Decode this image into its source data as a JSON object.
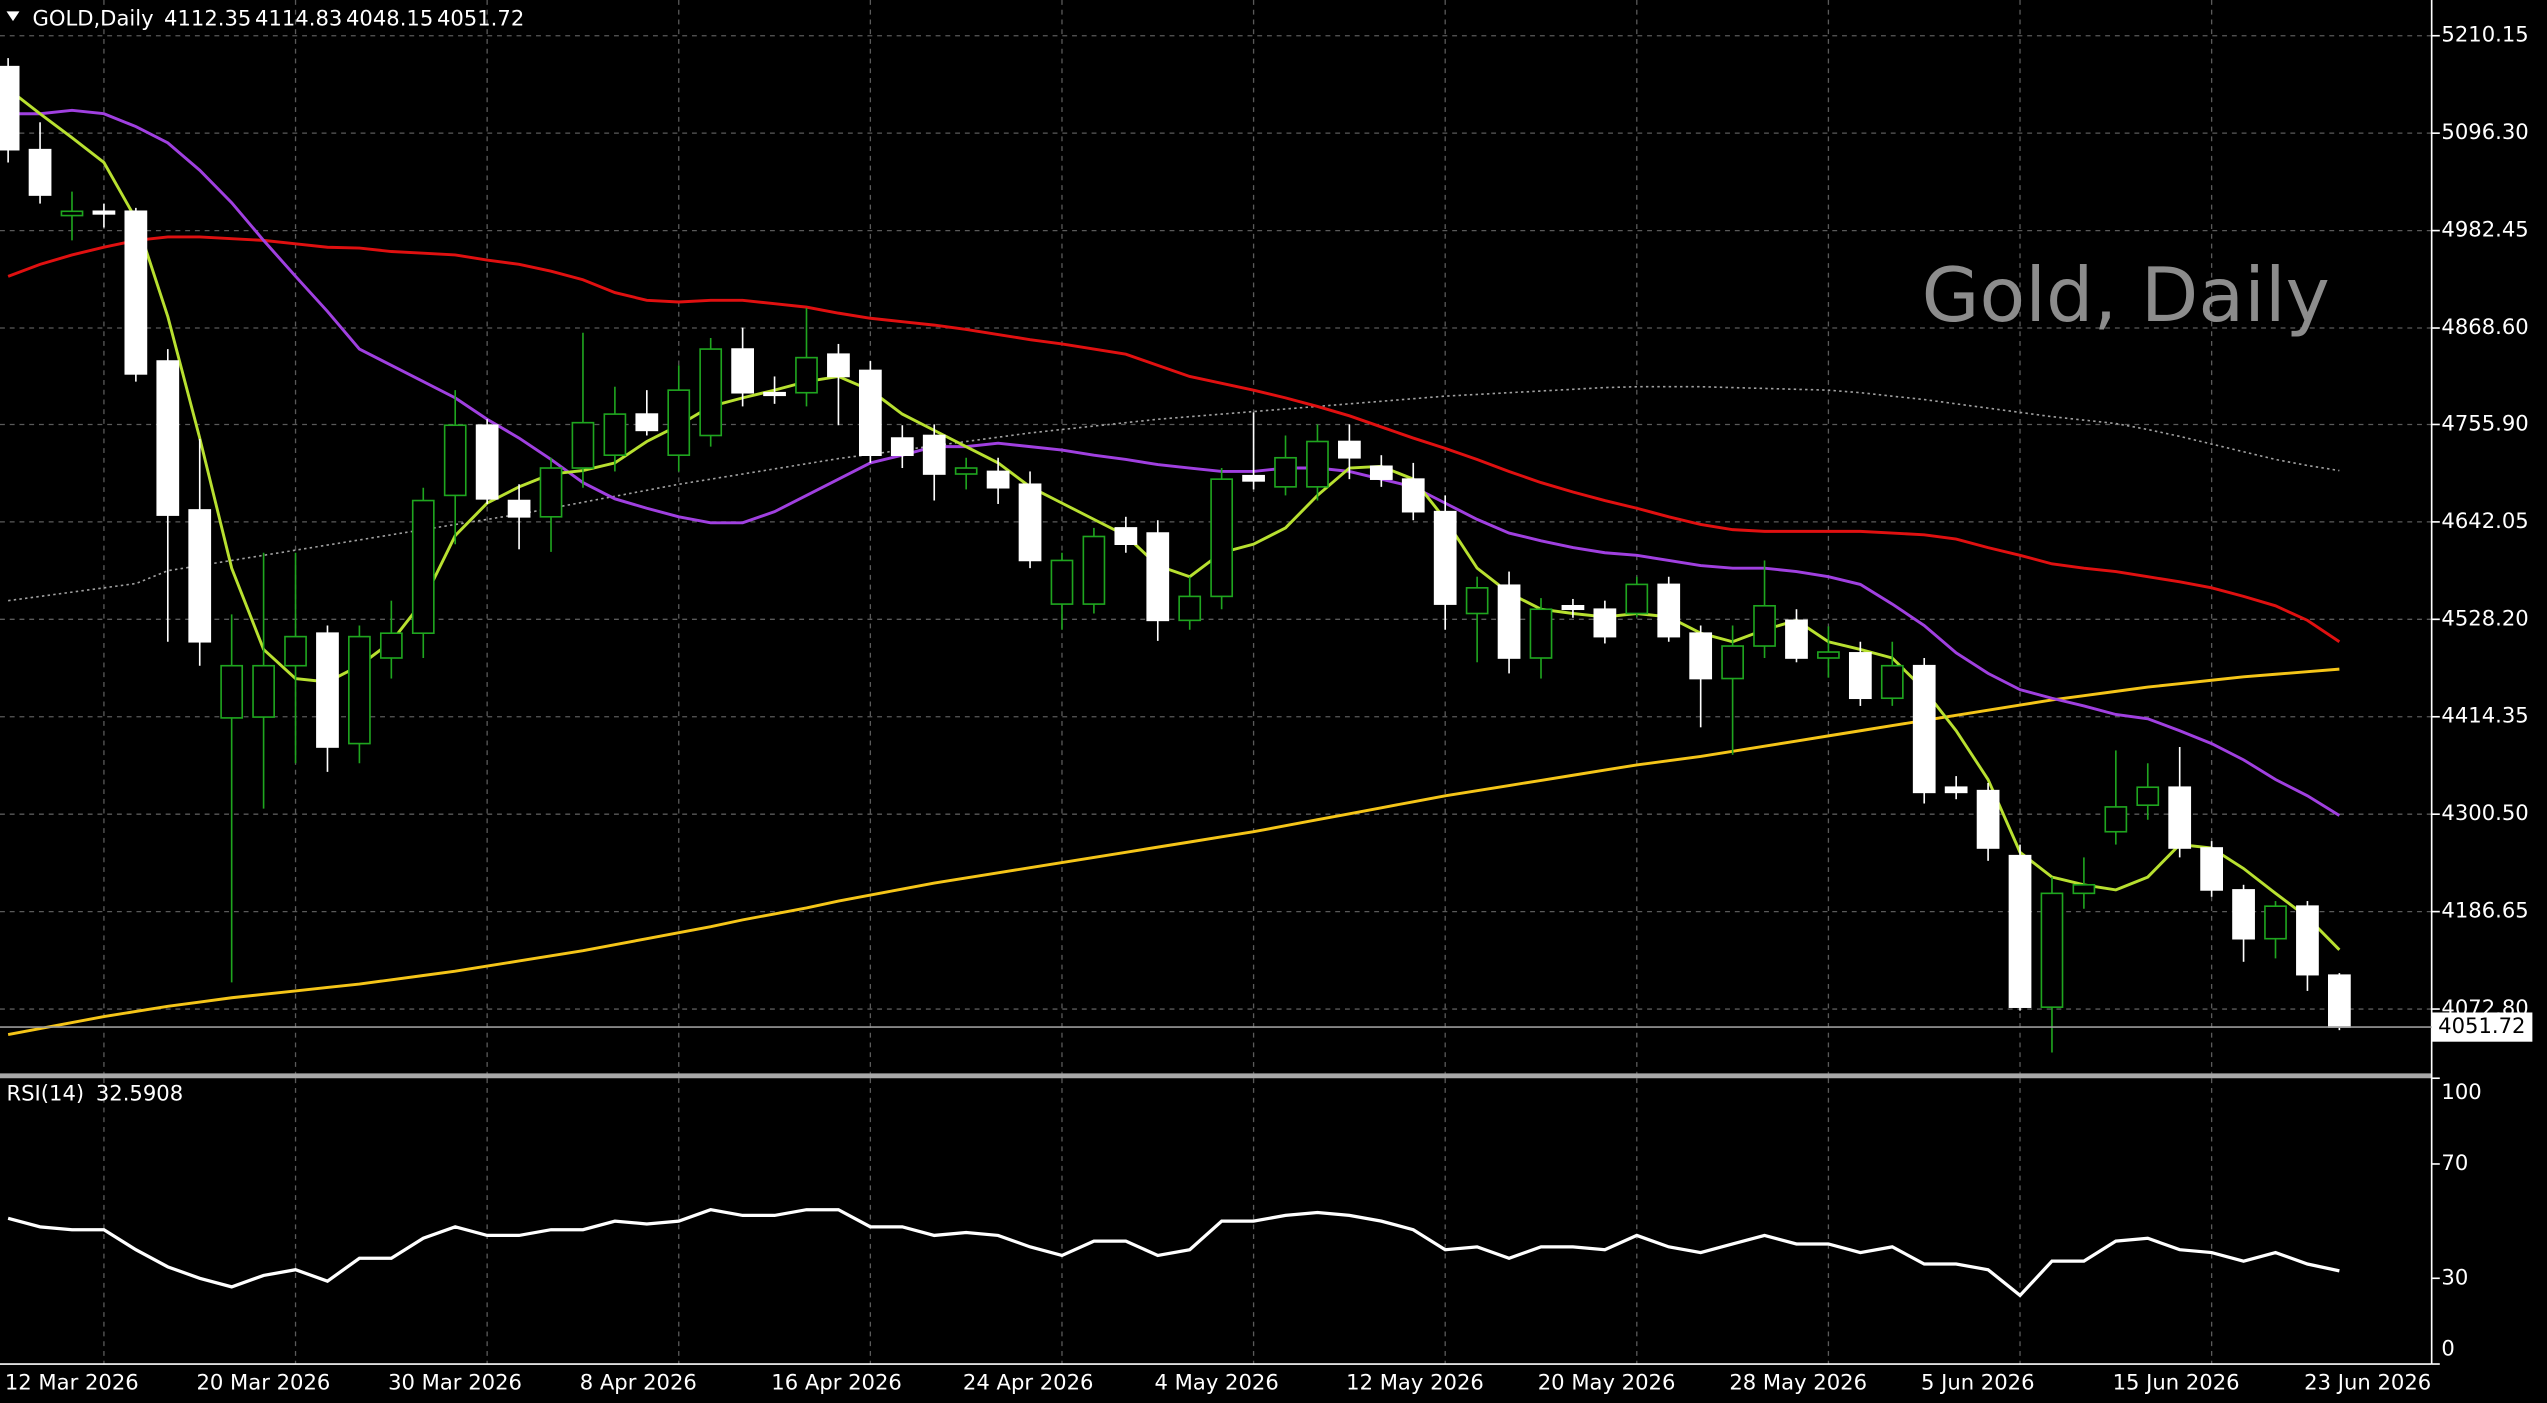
{
  "chart_data": [
    {
      "type": "candlestick",
      "title": "GOLD,Daily",
      "watermark": "Gold, Daily",
      "categories": [
        "12 Mar 2026",
        null,
        null,
        null,
        null,
        null,
        "20 Mar 2026",
        null,
        null,
        null,
        null,
        null,
        "30 Mar 2026",
        null,
        null,
        null,
        null,
        null,
        "8 Apr 2026",
        null,
        null,
        null,
        null,
        null,
        "16 Apr 2026",
        null,
        null,
        null,
        null,
        null,
        "24 Apr 2026",
        null,
        null,
        null,
        null,
        null,
        "4 May 2026",
        null,
        null,
        null,
        null,
        null,
        "12 May 2026",
        null,
        null,
        null,
        null,
        null,
        "20 May 2026",
        null,
        null,
        null,
        null,
        null,
        "28 May 2026",
        null,
        null,
        null,
        null,
        null,
        "5 Jun 2026",
        null,
        null,
        null,
        null,
        null,
        "15 Jun 2026",
        null,
        null,
        null,
        null,
        null,
        "23 Jun 2026",
        null
      ],
      "open": [
        5174,
        5077,
        5000,
        5005,
        5005,
        4830,
        4656,
        4413,
        4414,
        4474,
        4512,
        4383,
        4483,
        4512,
        4673,
        4755,
        4667,
        4648,
        4705,
        4720,
        4768,
        4720,
        4743,
        4844,
        4793,
        4793,
        4838,
        4819,
        4740,
        4743,
        4698,
        4701,
        4686,
        4546,
        4546,
        4635,
        4629,
        4527,
        4555,
        4696,
        4683,
        4683,
        4736,
        4707,
        4692,
        4654,
        4535,
        4568,
        4483,
        4544,
        4540,
        4535,
        4569,
        4512,
        4459,
        4497,
        4527,
        4483,
        4489,
        4436,
        4474,
        4332,
        4328,
        4252,
        4075,
        4208,
        4280,
        4311,
        4332,
        4261,
        4212,
        4155,
        4193,
        4112.35
      ],
      "high": [
        5184,
        5109,
        5028,
        5014,
        5009,
        4844,
        4739,
        4534,
        4606,
        4606,
        4521,
        4521,
        4550,
        4682,
        4796,
        4762,
        4686,
        4717,
        4863,
        4800,
        4796,
        4825,
        4857,
        4869,
        4812,
        4892,
        4850,
        4830,
        4755,
        4756,
        4717,
        4717,
        4701,
        4606,
        4635,
        4648,
        4644,
        4578,
        4705,
        4770,
        4743,
        4756,
        4756,
        4720,
        4711,
        4673,
        4578,
        4584,
        4553,
        4552,
        4550,
        4578,
        4578,
        4521,
        4521,
        4597,
        4540,
        4520,
        4502,
        4502,
        4483,
        4345,
        4337,
        4265,
        4227,
        4250,
        4375,
        4360,
        4379,
        4269,
        4218,
        4199,
        4199,
        4114.83
      ],
      "low": [
        5062,
        5014,
        4971,
        4986,
        4806,
        4502,
        4474,
        4104,
        4307,
        4360,
        4350,
        4360,
        4459,
        4483,
        4616,
        4663,
        4610,
        4607,
        4682,
        4701,
        4743,
        4701,
        4730,
        4777,
        4780,
        4777,
        4755,
        4711,
        4705,
        4667,
        4680,
        4663,
        4588,
        4516,
        4535,
        4606,
        4503,
        4516,
        4540,
        4680,
        4673,
        4667,
        4692,
        4683,
        4644,
        4516,
        4478,
        4465,
        4459,
        4530,
        4500,
        4531,
        4502,
        4402,
        4370,
        4483,
        4478,
        4460,
        4427,
        4427,
        4313,
        4318,
        4246,
        4071,
        4022,
        4190,
        4265,
        4294,
        4250,
        4204,
        4128,
        4132,
        4094,
        4048.15
      ],
      "close": [
        5077,
        5024,
        5005,
        5002,
        4815,
        4650,
        4502,
        4474,
        4474,
        4508,
        4379,
        4508,
        4512,
        4667,
        4755,
        4669,
        4648,
        4705,
        4758,
        4768,
        4749,
        4796,
        4844,
        4793,
        4790,
        4834,
        4812,
        4720,
        4720,
        4698,
        4705,
        4682,
        4597,
        4597,
        4625,
        4616,
        4527,
        4555,
        4692,
        4690,
        4717,
        4736,
        4717,
        4692,
        4654,
        4546,
        4565,
        4483,
        4540,
        4540,
        4508,
        4569,
        4508,
        4459,
        4497,
        4544,
        4483,
        4490,
        4436,
        4474,
        4326,
        4326,
        4261,
        4075,
        4208,
        4218,
        4309,
        4332,
        4261,
        4212,
        4155,
        4193,
        4113,
        4051.72
      ],
      "up_color": "#1fa51f",
      "down_color": "#ffffff",
      "overlays": [
        {
          "color": "#a0a0a0",
          "line_style": "dotted",
          "values": [
            4550,
            4555,
            4560,
            4565,
            4570,
            4585,
            4591,
            4597,
            4603,
            4609,
            4615,
            4621,
            4627,
            4633,
            4639,
            4645,
            4651,
            4658,
            4665,
            4672,
            4679,
            4686,
            4692,
            4698,
            4704,
            4710,
            4716,
            4721,
            4726,
            4731,
            4736,
            4741,
            4746,
            4750,
            4754,
            4758,
            4762,
            4765,
            4768,
            4771,
            4774,
            4777,
            4780,
            4783,
            4786,
            4789,
            4791,
            4793,
            4795,
            4797,
            4799,
            4800,
            4800,
            4800,
            4799,
            4798,
            4797,
            4796,
            4793,
            4789,
            4785,
            4780,
            4775,
            4770,
            4765,
            4761,
            4757,
            4750,
            4742,
            4733,
            4724,
            4715,
            4708,
            4702
          ]
        },
        {
          "color": "#f5c518",
          "line_style": "solid",
          "values": [
            4043,
            4050,
            4057,
            4064,
            4070,
            4076,
            4081,
            4086,
            4090,
            4094,
            4098,
            4102,
            4107,
            4112,
            4117,
            4123,
            4129,
            4135,
            4141,
            4148,
            4155,
            4162,
            4169,
            4177,
            4184,
            4191,
            4199,
            4206,
            4213,
            4220,
            4226,
            4232,
            4238,
            4244,
            4250,
            4256,
            4262,
            4268,
            4274,
            4280,
            4287,
            4294,
            4301,
            4308,
            4315,
            4322,
            4328,
            4334,
            4340,
            4346,
            4352,
            4358,
            4363,
            4368,
            4374,
            4380,
            4386,
            4392,
            4398,
            4404,
            4410,
            4416,
            4422,
            4428,
            4434,
            4439,
            4444,
            4449,
            4453,
            4457,
            4461,
            4464,
            4467,
            4470
          ]
        },
        {
          "color": "#e01010",
          "line_style": "solid",
          "values": [
            4929,
            4943,
            4954,
            4963,
            4971,
            4975,
            4975,
            4973,
            4971,
            4967,
            4963,
            4962,
            4958,
            4956,
            4954,
            4948,
            4943,
            4935,
            4925,
            4910,
            4901,
            4899,
            4901,
            4901,
            4897,
            4893,
            4886,
            4880,
            4876,
            4872,
            4867,
            4861,
            4855,
            4850,
            4844,
            4838,
            4825,
            4812,
            4804,
            4796,
            4787,
            4777,
            4766,
            4753,
            4740,
            4728,
            4715,
            4701,
            4688,
            4677,
            4667,
            4658,
            4648,
            4639,
            4633,
            4631,
            4631,
            4631,
            4631,
            4629,
            4627,
            4622,
            4612,
            4603,
            4593,
            4588,
            4584,
            4578,
            4572,
            4565,
            4555,
            4544,
            4527,
            4502
          ]
        },
        {
          "color": "#a040e0",
          "line_style": "solid",
          "values": [
            5119,
            5119,
            5123,
            5119,
            5104,
            5085,
            5053,
            5015,
            4971,
            4929,
            4888,
            4844,
            4825,
            4806,
            4787,
            4762,
            4740,
            4715,
            4688,
            4669,
            4658,
            4648,
            4641,
            4641,
            4654,
            4673,
            4692,
            4711,
            4720,
            4730,
            4730,
            4734,
            4730,
            4726,
            4720,
            4715,
            4709,
            4705,
            4701,
            4701,
            4705,
            4705,
            4701,
            4692,
            4683,
            4664,
            4645,
            4629,
            4620,
            4612,
            4606,
            4603,
            4597,
            4591,
            4588,
            4588,
            4584,
            4578,
            4569,
            4546,
            4521,
            4489,
            4465,
            4446,
            4436,
            4427,
            4417,
            4412,
            4398,
            4383,
            4364,
            4341,
            4322,
            4299
          ]
        },
        {
          "color": "#b8e030",
          "line_style": "solid",
          "values": [
            5148,
            5119,
            5091,
            5062,
            4996,
            4882,
            4740,
            4588,
            4493,
            4459,
            4455,
            4474,
            4502,
            4550,
            4626,
            4664,
            4683,
            4698,
            4702,
            4711,
            4736,
            4755,
            4777,
            4787,
            4796,
            4806,
            4812,
            4796,
            4768,
            4749,
            4730,
            4711,
            4683,
            4664,
            4645,
            4626,
            4591,
            4578,
            4606,
            4616,
            4635,
            4673,
            4705,
            4707,
            4692,
            4645,
            4588,
            4559,
            4540,
            4535,
            4531,
            4535,
            4531,
            4512,
            4502,
            4516,
            4527,
            4502,
            4493,
            4483,
            4446,
            4398,
            4341,
            4256,
            4227,
            4218,
            4212,
            4227,
            4265,
            4261,
            4237,
            4208,
            4180,
            4142
          ]
        }
      ],
      "ylim": [
        3995.75,
        5251.9
      ],
      "yticks": [
        5210.15,
        {
          "value": 5096.3,
          "label": "5096.30"
        },
        4982.45,
        {
          "value": 4868.6,
          "label": "4868.60"
        },
        {
          "value": 4755.9,
          "label": "4755.90"
        },
        4642.05,
        {
          "value": 4528.2,
          "label": "4528.20"
        },
        4414.35,
        {
          "value": 4300.5,
          "label": "4300.50"
        },
        4186.65,
        {
          "value": 4072.8,
          "label": "4072.80"
        }
      ],
      "grid": true
    },
    {
      "type": "line",
      "title": "RSI(14)",
      "color": "#ffffff",
      "values": [
        51,
        48,
        47,
        47,
        40,
        34,
        30,
        27,
        31,
        33,
        29,
        37,
        37,
        44,
        48,
        45,
        45,
        47,
        47,
        50,
        49,
        50,
        54,
        52,
        52,
        54,
        54,
        48,
        48,
        45,
        46,
        45,
        41,
        38,
        43,
        43,
        38,
        40,
        50,
        50,
        52,
        53,
        52,
        50,
        47,
        40,
        41,
        37,
        41,
        41,
        40,
        45,
        41,
        39,
        42,
        45,
        42,
        42,
        39,
        41,
        35,
        35,
        33,
        24,
        36,
        36,
        43,
        44,
        40,
        39,
        36,
        39,
        35,
        32.5908
      ],
      "ylim": [
        0,
        100
      ],
      "yticks": [
        100,
        70,
        30,
        0
      ]
    }
  ]
}
